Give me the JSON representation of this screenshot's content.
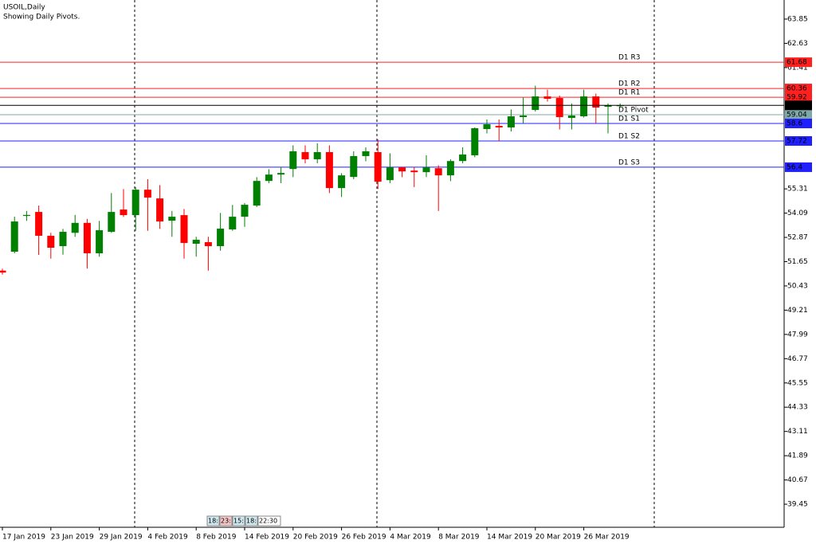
{
  "chart_data": {
    "type": "candlestick",
    "title": "USOIL,Daily",
    "subtitle": "Showing Daily Pivots.",
    "categories": [
      "17 Jan 2019",
      null,
      null,
      null,
      "23 Jan 2019",
      null,
      null,
      null,
      "29 Jan 2019",
      null,
      null,
      null,
      "4 Feb 2019",
      null,
      null,
      null,
      "8 Feb 2019",
      null,
      null,
      null,
      "14 Feb 2019",
      null,
      null,
      null,
      "20 Feb 2019",
      null,
      null,
      null,
      "26 Feb 2019",
      null,
      null,
      null,
      "4 Mar 2019",
      null,
      null,
      null,
      "8 Mar 2019",
      null,
      null,
      null,
      "14 Mar 2019",
      null,
      null,
      null,
      "20 Mar 2019",
      null,
      null,
      null,
      "26 Mar 2019",
      null,
      null,
      null
    ],
    "open": [
      51.2,
      52.15,
      53.95,
      54.15,
      52.95,
      52.43,
      53.1,
      53.6,
      52.07,
      53.15,
      54.27,
      53.99,
      55.27,
      54.83,
      53.71,
      53.99,
      52.55,
      52.63,
      52.43,
      53.27,
      53.91,
      54.47,
      55.71,
      56.03,
      56.31,
      57.16,
      56.8,
      57.16,
      55.35,
      55.91,
      56.96,
      57.16,
      55.75,
      56.39,
      56.23,
      56.15,
      56.35,
      55.99,
      56.71,
      57.0,
      58.32,
      58.48,
      58.4,
      58.92,
      59.28,
      59.96,
      59.88,
      58.88,
      58.96,
      59.96,
      59.44,
      59.48
    ],
    "high": [
      51.3,
      53.91,
      54.2,
      54.47,
      53.1,
      53.3,
      54.0,
      53.8,
      53.7,
      55.1,
      55.3,
      55.4,
      55.8,
      55.5,
      54.2,
      54.3,
      52.9,
      52.9,
      54.1,
      54.5,
      54.6,
      55.9,
      56.3,
      56.4,
      57.5,
      57.5,
      57.6,
      57.5,
      56.1,
      57.2,
      57.4,
      57.8,
      57.1,
      56.4,
      56.4,
      57.0,
      56.5,
      56.8,
      57.4,
      58.4,
      58.8,
      58.8,
      59.3,
      59.9,
      60.5,
      60.3,
      60.0,
      59.6,
      60.3,
      60.1,
      59.6,
      59.6
    ],
    "low": [
      51.0,
      52.07,
      53.7,
      51.99,
      51.8,
      52.0,
      52.9,
      51.3,
      51.9,
      53.1,
      53.9,
      53.2,
      53.2,
      53.3,
      52.9,
      51.8,
      51.9,
      51.2,
      52.2,
      53.2,
      53.4,
      54.4,
      55.6,
      55.6,
      55.9,
      56.6,
      56.6,
      55.1,
      54.9,
      55.8,
      56.7,
      55.3,
      55.6,
      55.9,
      55.4,
      55.9,
      54.2,
      55.7,
      56.6,
      56.9,
      58.1,
      57.7,
      58.2,
      58.6,
      59.2,
      59.7,
      58.3,
      58.3,
      58.9,
      58.6,
      58.1,
      59.4
    ],
    "close": [
      51.1,
      53.67,
      54.0,
      52.95,
      52.35,
      53.15,
      53.6,
      52.07,
      53.23,
      54.15,
      53.99,
      55.27,
      54.87,
      53.67,
      53.91,
      52.59,
      52.75,
      52.43,
      53.31,
      53.91,
      54.51,
      55.71,
      56.03,
      56.11,
      57.2,
      56.8,
      57.16,
      55.35,
      55.99,
      56.96,
      57.2,
      55.67,
      56.39,
      56.19,
      56.15,
      56.39,
      55.99,
      56.71,
      57.04,
      58.36,
      58.56,
      58.4,
      58.96,
      59.0,
      59.96,
      59.84,
      58.92,
      59.0,
      59.96,
      59.4,
      59.51,
      59.51
    ],
    "up_color": "#008000",
    "down_color": "#ff0000",
    "last_price_color": "#000000",
    "levels": [
      {
        "name": "D1 R3",
        "value": 61.68,
        "color": "#ff2020"
      },
      {
        "name": "D1 R2",
        "value": 60.36,
        "color": "#ff2020"
      },
      {
        "name": "D1 R1",
        "value": 59.92,
        "color": "#ff2020"
      },
      {
        "name": "D1 Pivot",
        "value": 59.04,
        "color": "#7fa8a8"
      },
      {
        "name": "D1 S1",
        "value": 58.6,
        "color": "#2020ff"
      },
      {
        "name": "D1 S2",
        "value": 57.72,
        "color": "#2020ff"
      },
      {
        "name": "D1 S3",
        "value": 56.4,
        "color": "#2020ff"
      }
    ],
    "ylim": [
      38.29,
      64.81
    ],
    "yticks": [
      63.85,
      62.63,
      61.41,
      55.31,
      54.09,
      52.87,
      51.65,
      50.43,
      49.21,
      47.99,
      46.77,
      45.55,
      44.33,
      43.11,
      41.89,
      40.67,
      39.45
    ],
    "session_clock": [
      "18:",
      "23:",
      "15:",
      "18:",
      "22:30"
    ]
  }
}
